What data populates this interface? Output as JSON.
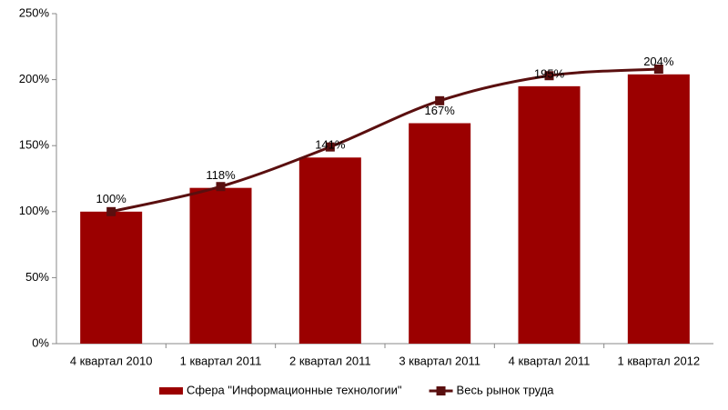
{
  "chart_data": {
    "type": "bar",
    "categories": [
      "4 квартал 2010",
      "1 квартал 2011",
      "2 квартал 2011",
      "3 квартал 2011",
      "4 квартал 2011",
      "1 квартал 2012"
    ],
    "series": [
      {
        "name": "Сфера \"Информационные технологии\"",
        "type": "bar",
        "color": "#9b0000",
        "values": [
          100,
          118,
          141,
          167,
          195,
          204
        ],
        "value_labels": [
          "100%",
          "118%",
          "141%",
          "167%",
          "195%",
          "204%"
        ]
      },
      {
        "name": "Весь рынок труда",
        "type": "line",
        "color": "#5a0f0f",
        "values": [
          100,
          119,
          149,
          184,
          203,
          208
        ]
      }
    ],
    "ylim": [
      0,
      250
    ],
    "yticks": [
      {
        "value": 0,
        "label": "0%"
      },
      {
        "value": 50,
        "label": "50%"
      },
      {
        "value": 100,
        "label": "100%"
      },
      {
        "value": 150,
        "label": "150%"
      },
      {
        "value": 200,
        "label": "200%"
      },
      {
        "value": 250,
        "label": "250%"
      }
    ],
    "grid": false,
    "legend": "bottom"
  }
}
